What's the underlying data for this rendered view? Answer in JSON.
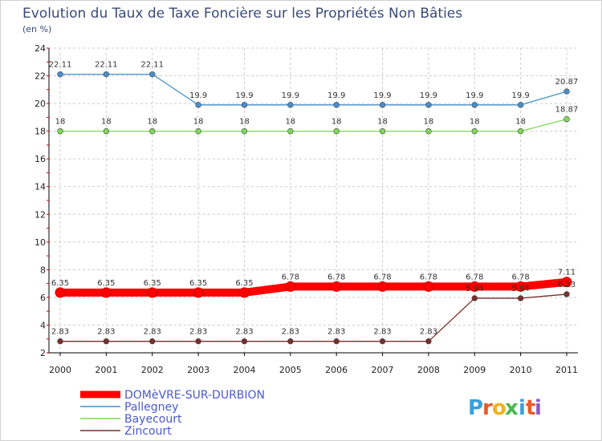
{
  "chart_data": {
    "type": "line",
    "title": "Evolution du Taux de Taxe Foncière sur les Propriétés Non Bâties",
    "subtitle": "(en %)",
    "x": [
      "2000",
      "2001",
      "2002",
      "2003",
      "2004",
      "2005",
      "2006",
      "2007",
      "2008",
      "2009",
      "2010",
      "2011"
    ],
    "ylim": [
      2,
      24
    ],
    "yticks": [
      "2",
      "4",
      "6",
      "8",
      "10",
      "12",
      "14",
      "16",
      "18",
      "20",
      "22",
      "24"
    ],
    "grid": true,
    "legend_position": "bottom-left",
    "series": [
      {
        "name": "Pallegney",
        "color": "#4a8fc9",
        "values": [
          22.11,
          22.11,
          22.11,
          19.9,
          19.9,
          19.9,
          19.9,
          19.9,
          19.9,
          19.9,
          19.9,
          20.87
        ],
        "labels": [
          "22.11",
          "22.11",
          "22.11",
          "19.9",
          "19.9",
          "19.9",
          "19.9",
          "19.9",
          "19.9",
          "19.9",
          "19.9",
          "20.87"
        ]
      },
      {
        "name": "Bayecourt",
        "color": "#7ed957",
        "values": [
          18,
          18,
          18,
          18,
          18,
          18,
          18,
          18,
          18,
          18,
          18,
          18.87
        ],
        "labels": [
          "18",
          "18",
          "18",
          "18",
          "18",
          "18",
          "18",
          "18",
          "18",
          "18",
          "18",
          "18.87"
        ]
      },
      {
        "name": "Zincourt",
        "color": "#7a2e2e",
        "values": [
          2.83,
          2.83,
          2.83,
          2.83,
          2.83,
          2.83,
          2.83,
          2.83,
          2.83,
          5.94,
          5.94,
          6.23
        ],
        "labels": [
          "2.83",
          "2.83",
          "2.83",
          "2.83",
          "2.83",
          "2.83",
          "2.83",
          "2.83",
          "2.83",
          "5.94",
          "5.94",
          "6.23"
        ]
      },
      {
        "name": "DOMèVRE-SUR-DURBION",
        "color": "#ff0000",
        "values": [
          6.35,
          6.35,
          6.35,
          6.35,
          6.35,
          6.78,
          6.78,
          6.78,
          6.78,
          6.78,
          6.78,
          7.11
        ],
        "labels": [
          "6.35",
          "6.35",
          "6.35",
          "6.35",
          "6.35",
          "6.78",
          "6.78",
          "6.78",
          "6.78",
          "6.78",
          "6.78",
          "7.11"
        ]
      }
    ],
    "legend": [
      "DOMèVRE-SUR-DURBION",
      "Pallegney",
      "Bayecourt",
      "Zincourt"
    ]
  },
  "logo": {
    "letters": [
      "P",
      "r",
      "o",
      "x",
      "i",
      "t",
      "i"
    ],
    "colors": [
      "#3aa0d8",
      "#e85a2a",
      "#f0b020",
      "#4ab84a",
      "#3aa0d8",
      "#e85a2a",
      "#8a5ac8"
    ]
  }
}
